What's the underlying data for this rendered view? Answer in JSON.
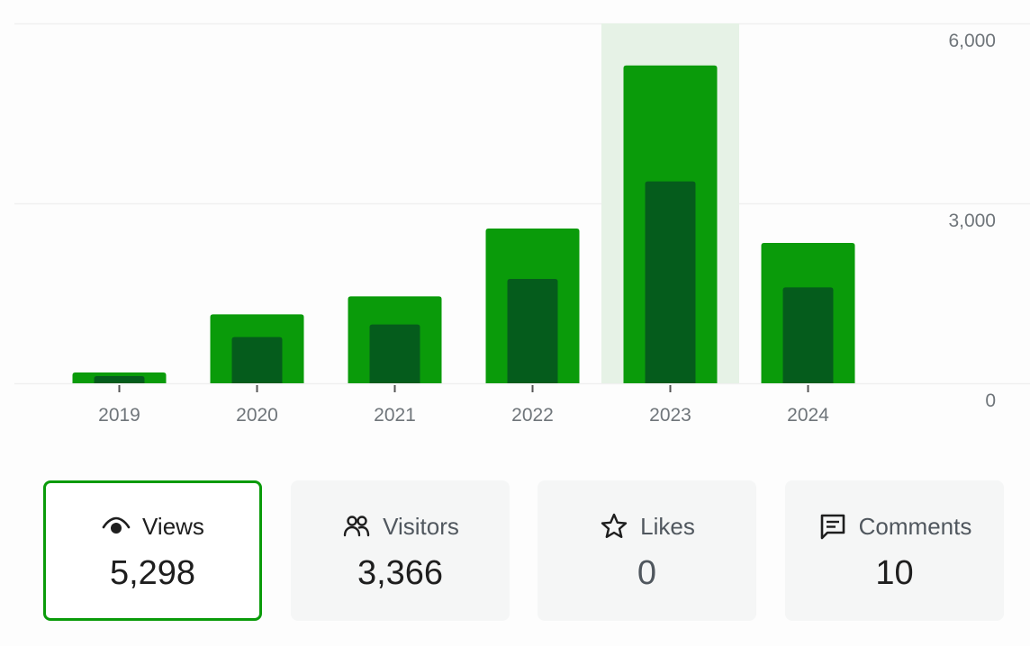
{
  "chart_data": {
    "type": "bar",
    "categories": [
      "2019",
      "2020",
      "2021",
      "2022",
      "2023",
      "2024"
    ],
    "series": [
      {
        "values": [
          180,
          1150,
          1450,
          2580,
          5298,
          2340
        ]
      },
      {
        "values": [
          120,
          770,
          980,
          1740,
          3366,
          1600
        ]
      }
    ],
    "ylim": [
      0,
      6000
    ],
    "yticks": [
      "6,000",
      "3,000",
      "0"
    ],
    "ytick_values": [
      6000,
      3000,
      0
    ],
    "highlighted_category": "2023",
    "y_axis_position": "right",
    "grid": true,
    "colors": {
      "outer_bar": "#0a9b0a",
      "inner_bar": "#055c1c",
      "highlight": "#e6f2e6",
      "grid": "#f0f0f0"
    }
  },
  "stats": {
    "views": {
      "label": "Views",
      "value": "5,298",
      "icon": "eye-icon",
      "selected": true
    },
    "visitors": {
      "label": "Visitors",
      "value": "3,366",
      "icon": "people-icon"
    },
    "likes": {
      "label": "Likes",
      "value": "0",
      "icon": "star-icon"
    },
    "comments": {
      "label": "Comments",
      "value": "10",
      "icon": "comment-icon"
    }
  },
  "colors": {
    "accent": "#0a9b0a",
    "card_bg": "#f5f6f6",
    "text": "#1e1e1e",
    "muted_text": "#50575e"
  }
}
